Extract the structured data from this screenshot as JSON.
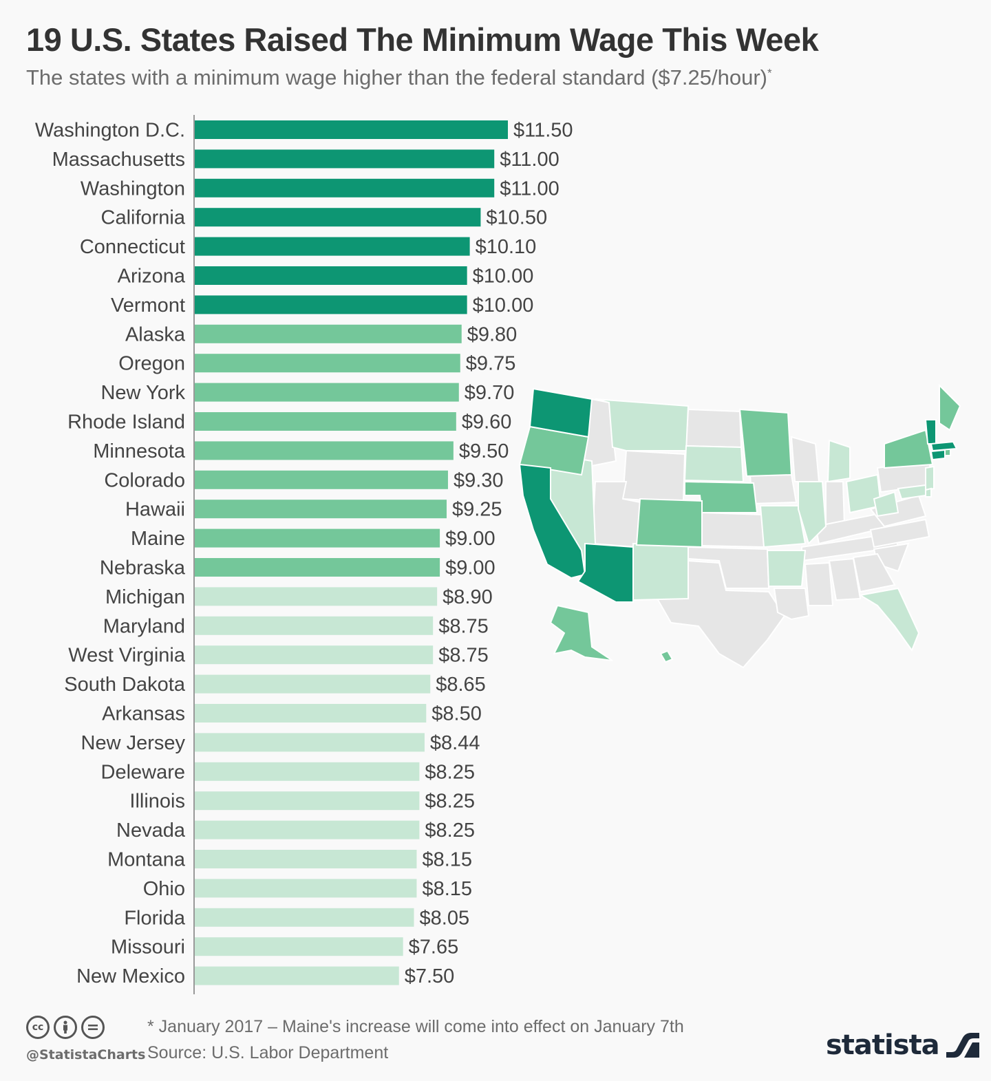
{
  "title": "19 U.S. States Raised The Minimum Wage This Week",
  "subtitle": "The states with a minimum wage higher than the federal standard ($7.25/hour)",
  "subtitle_mark": "*",
  "colors": {
    "tier_high": "#0d9673",
    "tier_mid": "#74c79a",
    "tier_low": "#c7e7d4",
    "no_data": "#e6e6e6",
    "axis": "#999999"
  },
  "chart_data": {
    "type": "bar",
    "orientation": "horizontal",
    "categories": [
      "Washington D.C.",
      "Massachusetts",
      "Washington",
      "California",
      "Connecticut",
      "Arizona",
      "Vermont",
      "Alaska",
      "Oregon",
      "New York",
      "Rhode Island",
      "Minnesota",
      "Colorado",
      "Hawaii",
      "Maine",
      "Nebraska",
      "Michigan",
      "Maryland",
      "West Virginia",
      "South Dakota",
      "Arkansas",
      "New Jersey",
      "Deleware",
      "Illinois",
      "Nevada",
      "Montana",
      "Ohio",
      "Florida",
      "Missouri",
      "New Mexico"
    ],
    "values": [
      11.5,
      11.0,
      11.0,
      10.5,
      10.1,
      10.0,
      10.0,
      9.8,
      9.75,
      9.7,
      9.6,
      9.5,
      9.3,
      9.25,
      9.0,
      9.0,
      8.9,
      8.75,
      8.75,
      8.65,
      8.5,
      8.44,
      8.25,
      8.25,
      8.25,
      8.15,
      8.15,
      8.05,
      7.65,
      7.5
    ],
    "value_labels": [
      "$11.50",
      "$11.00",
      "$11.00",
      "$10.50",
      "$10.10",
      "$10.00",
      "$10.00",
      "$9.80",
      "$9.75",
      "$9.70",
      "$9.60",
      "$9.50",
      "$9.30",
      "$9.25",
      "$9.00",
      "$9.00",
      "$8.90",
      "$8.75",
      "$8.75",
      "$8.65",
      "$8.50",
      "$8.44",
      "$8.25",
      "$8.25",
      "$8.25",
      "$8.15",
      "$8.15",
      "$8.05",
      "$7.65",
      "$7.50"
    ],
    "tiers": [
      "high",
      "high",
      "high",
      "high",
      "high",
      "high",
      "high",
      "mid",
      "mid",
      "mid",
      "mid",
      "mid",
      "mid",
      "mid",
      "mid",
      "mid",
      "low",
      "low",
      "low",
      "low",
      "low",
      "low",
      "low",
      "low",
      "low",
      "low",
      "low",
      "low",
      "low",
      "low"
    ],
    "xlim": [
      0,
      11.5
    ],
    "grid": false,
    "legend": "none"
  },
  "footer": {
    "footnote": "* January 2017 – Maine's increase will come into effect on January 7th",
    "source": "Source: U.S. Labor Department",
    "handle": "@StatistaCharts",
    "brand": "statista",
    "license_icons": [
      "creative-commons-icon",
      "attribution-icon",
      "no-derivatives-icon"
    ]
  }
}
